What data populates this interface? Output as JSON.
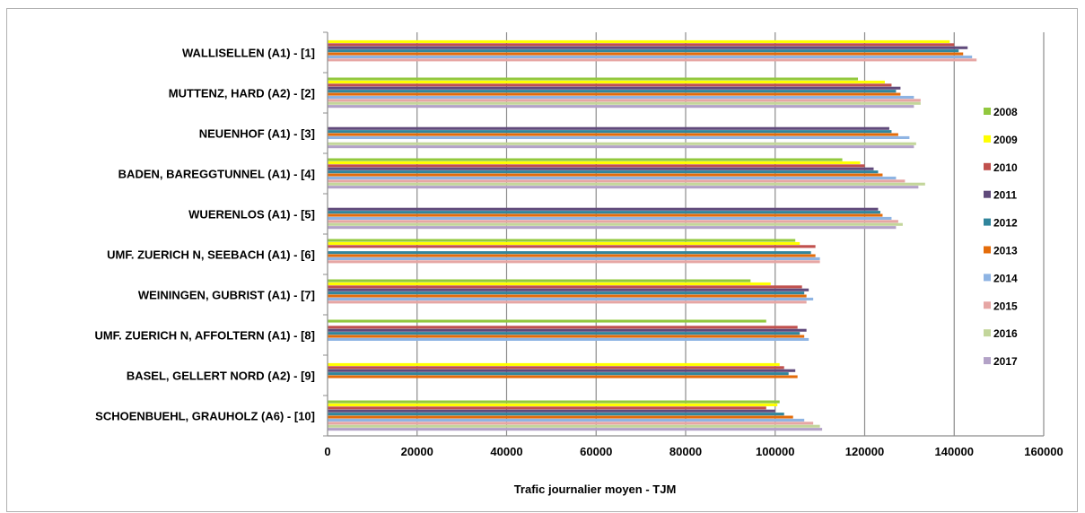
{
  "chart_data": {
    "type": "bar",
    "orientation": "horizontal",
    "xlabel": "Trafic journalier moyen - TJM",
    "xlim": [
      0,
      160000
    ],
    "xticks": [
      "0",
      "20000",
      "40000",
      "60000",
      "80000",
      "100000",
      "120000",
      "140000",
      "160000"
    ],
    "grid": true,
    "legend_position": "right",
    "categories": [
      "WALLISELLEN (A1) - [1]",
      "MUTTENZ, HARD (A2) - [2]",
      "NEUENHOF (A1) - [3]",
      "BADEN, BAREGGTUNNEL (A1) - [4]",
      "WUERENLOS (A1) - [5]",
      "UMF. ZUERICH N, SEEBACH (A1) - [6]",
      "WEININGEN, GUBRIST (A1) - [7]",
      "UMF. ZUERICH N, AFFOLTERN (A1) - [8]",
      "BASEL, GELLERT NORD (A2) - [9]",
      "SCHOENBUEHL, GRAUHOLZ (A6) - [10]"
    ],
    "series": [
      {
        "name": "2008",
        "color": "#92c83e",
        "values": [
          null,
          118500,
          null,
          115000,
          null,
          104500,
          94500,
          98000,
          null,
          101000
        ]
      },
      {
        "name": "2009",
        "color": "#ffff00",
        "values": [
          139000,
          124500,
          null,
          119000,
          null,
          105500,
          99000,
          null,
          101000,
          100500
        ]
      },
      {
        "name": "2010",
        "color": "#c0504d",
        "values": [
          140000,
          126000,
          null,
          120000,
          null,
          109000,
          106000,
          105000,
          102000,
          98000
        ]
      },
      {
        "name": "2011",
        "color": "#604a7b",
        "values": [
          143000,
          128000,
          125500,
          122000,
          123000,
          null,
          107500,
          107000,
          104500,
          100000
        ]
      },
      {
        "name": "2012",
        "color": "#31859c",
        "values": [
          141000,
          127000,
          126000,
          123000,
          123500,
          108000,
          106500,
          105500,
          103000,
          102000
        ]
      },
      {
        "name": "2013",
        "color": "#e46c0a",
        "values": [
          142000,
          128000,
          127500,
          124000,
          124000,
          109000,
          107000,
          106500,
          105000,
          104000
        ]
      },
      {
        "name": "2014",
        "color": "#8eb4e3",
        "values": [
          144000,
          131000,
          130000,
          127000,
          126000,
          110000,
          108500,
          107500,
          null,
          106500
        ]
      },
      {
        "name": "2015",
        "color": "#e6a6a4",
        "values": [
          145000,
          132500,
          null,
          129000,
          127500,
          110000,
          107000,
          null,
          null,
          108500
        ]
      },
      {
        "name": "2016",
        "color": "#c3d69b",
        "values": [
          null,
          132500,
          131500,
          133500,
          128500,
          null,
          null,
          null,
          null,
          110000
        ]
      },
      {
        "name": "2017",
        "color": "#b3a2c7",
        "values": [
          null,
          131000,
          131000,
          132000,
          127000,
          null,
          null,
          null,
          null,
          110500
        ]
      }
    ]
  }
}
